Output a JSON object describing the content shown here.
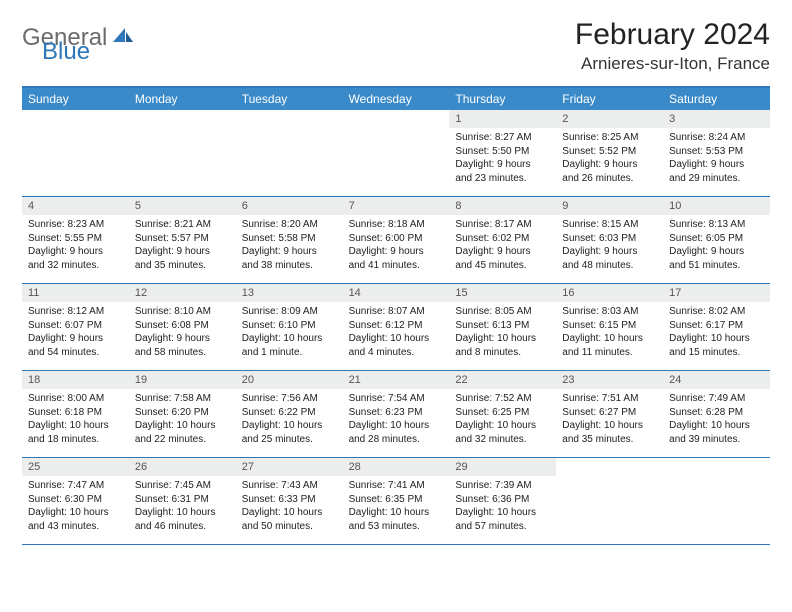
{
  "logo": {
    "general": "General",
    "blue": "Blue"
  },
  "title": "February 2024",
  "location": "Arnieres-sur-Iton, France",
  "colors": {
    "header_bg": "#3a8ac9",
    "border": "#2e77b8",
    "daynum_bg": "#eceded",
    "logo_gray": "#6b6b6b",
    "logo_blue": "#2e77b8"
  },
  "day_labels": [
    "Sunday",
    "Monday",
    "Tuesday",
    "Wednesday",
    "Thursday",
    "Friday",
    "Saturday"
  ],
  "weeks": [
    [
      null,
      null,
      null,
      null,
      {
        "n": "1",
        "sunrise": "Sunrise: 8:27 AM",
        "sunset": "Sunset: 5:50 PM",
        "day1": "Daylight: 9 hours",
        "day2": "and 23 minutes."
      },
      {
        "n": "2",
        "sunrise": "Sunrise: 8:25 AM",
        "sunset": "Sunset: 5:52 PM",
        "day1": "Daylight: 9 hours",
        "day2": "and 26 minutes."
      },
      {
        "n": "3",
        "sunrise": "Sunrise: 8:24 AM",
        "sunset": "Sunset: 5:53 PM",
        "day1": "Daylight: 9 hours",
        "day2": "and 29 minutes."
      }
    ],
    [
      {
        "n": "4",
        "sunrise": "Sunrise: 8:23 AM",
        "sunset": "Sunset: 5:55 PM",
        "day1": "Daylight: 9 hours",
        "day2": "and 32 minutes."
      },
      {
        "n": "5",
        "sunrise": "Sunrise: 8:21 AM",
        "sunset": "Sunset: 5:57 PM",
        "day1": "Daylight: 9 hours",
        "day2": "and 35 minutes."
      },
      {
        "n": "6",
        "sunrise": "Sunrise: 8:20 AM",
        "sunset": "Sunset: 5:58 PM",
        "day1": "Daylight: 9 hours",
        "day2": "and 38 minutes."
      },
      {
        "n": "7",
        "sunrise": "Sunrise: 8:18 AM",
        "sunset": "Sunset: 6:00 PM",
        "day1": "Daylight: 9 hours",
        "day2": "and 41 minutes."
      },
      {
        "n": "8",
        "sunrise": "Sunrise: 8:17 AM",
        "sunset": "Sunset: 6:02 PM",
        "day1": "Daylight: 9 hours",
        "day2": "and 45 minutes."
      },
      {
        "n": "9",
        "sunrise": "Sunrise: 8:15 AM",
        "sunset": "Sunset: 6:03 PM",
        "day1": "Daylight: 9 hours",
        "day2": "and 48 minutes."
      },
      {
        "n": "10",
        "sunrise": "Sunrise: 8:13 AM",
        "sunset": "Sunset: 6:05 PM",
        "day1": "Daylight: 9 hours",
        "day2": "and 51 minutes."
      }
    ],
    [
      {
        "n": "11",
        "sunrise": "Sunrise: 8:12 AM",
        "sunset": "Sunset: 6:07 PM",
        "day1": "Daylight: 9 hours",
        "day2": "and 54 minutes."
      },
      {
        "n": "12",
        "sunrise": "Sunrise: 8:10 AM",
        "sunset": "Sunset: 6:08 PM",
        "day1": "Daylight: 9 hours",
        "day2": "and 58 minutes."
      },
      {
        "n": "13",
        "sunrise": "Sunrise: 8:09 AM",
        "sunset": "Sunset: 6:10 PM",
        "day1": "Daylight: 10 hours",
        "day2": "and 1 minute."
      },
      {
        "n": "14",
        "sunrise": "Sunrise: 8:07 AM",
        "sunset": "Sunset: 6:12 PM",
        "day1": "Daylight: 10 hours",
        "day2": "and 4 minutes."
      },
      {
        "n": "15",
        "sunrise": "Sunrise: 8:05 AM",
        "sunset": "Sunset: 6:13 PM",
        "day1": "Daylight: 10 hours",
        "day2": "and 8 minutes."
      },
      {
        "n": "16",
        "sunrise": "Sunrise: 8:03 AM",
        "sunset": "Sunset: 6:15 PM",
        "day1": "Daylight: 10 hours",
        "day2": "and 11 minutes."
      },
      {
        "n": "17",
        "sunrise": "Sunrise: 8:02 AM",
        "sunset": "Sunset: 6:17 PM",
        "day1": "Daylight: 10 hours",
        "day2": "and 15 minutes."
      }
    ],
    [
      {
        "n": "18",
        "sunrise": "Sunrise: 8:00 AM",
        "sunset": "Sunset: 6:18 PM",
        "day1": "Daylight: 10 hours",
        "day2": "and 18 minutes."
      },
      {
        "n": "19",
        "sunrise": "Sunrise: 7:58 AM",
        "sunset": "Sunset: 6:20 PM",
        "day1": "Daylight: 10 hours",
        "day2": "and 22 minutes."
      },
      {
        "n": "20",
        "sunrise": "Sunrise: 7:56 AM",
        "sunset": "Sunset: 6:22 PM",
        "day1": "Daylight: 10 hours",
        "day2": "and 25 minutes."
      },
      {
        "n": "21",
        "sunrise": "Sunrise: 7:54 AM",
        "sunset": "Sunset: 6:23 PM",
        "day1": "Daylight: 10 hours",
        "day2": "and 28 minutes."
      },
      {
        "n": "22",
        "sunrise": "Sunrise: 7:52 AM",
        "sunset": "Sunset: 6:25 PM",
        "day1": "Daylight: 10 hours",
        "day2": "and 32 minutes."
      },
      {
        "n": "23",
        "sunrise": "Sunrise: 7:51 AM",
        "sunset": "Sunset: 6:27 PM",
        "day1": "Daylight: 10 hours",
        "day2": "and 35 minutes."
      },
      {
        "n": "24",
        "sunrise": "Sunrise: 7:49 AM",
        "sunset": "Sunset: 6:28 PM",
        "day1": "Daylight: 10 hours",
        "day2": "and 39 minutes."
      }
    ],
    [
      {
        "n": "25",
        "sunrise": "Sunrise: 7:47 AM",
        "sunset": "Sunset: 6:30 PM",
        "day1": "Daylight: 10 hours",
        "day2": "and 43 minutes."
      },
      {
        "n": "26",
        "sunrise": "Sunrise: 7:45 AM",
        "sunset": "Sunset: 6:31 PM",
        "day1": "Daylight: 10 hours",
        "day2": "and 46 minutes."
      },
      {
        "n": "27",
        "sunrise": "Sunrise: 7:43 AM",
        "sunset": "Sunset: 6:33 PM",
        "day1": "Daylight: 10 hours",
        "day2": "and 50 minutes."
      },
      {
        "n": "28",
        "sunrise": "Sunrise: 7:41 AM",
        "sunset": "Sunset: 6:35 PM",
        "day1": "Daylight: 10 hours",
        "day2": "and 53 minutes."
      },
      {
        "n": "29",
        "sunrise": "Sunrise: 7:39 AM",
        "sunset": "Sunset: 6:36 PM",
        "day1": "Daylight: 10 hours",
        "day2": "and 57 minutes."
      },
      null,
      null
    ]
  ]
}
